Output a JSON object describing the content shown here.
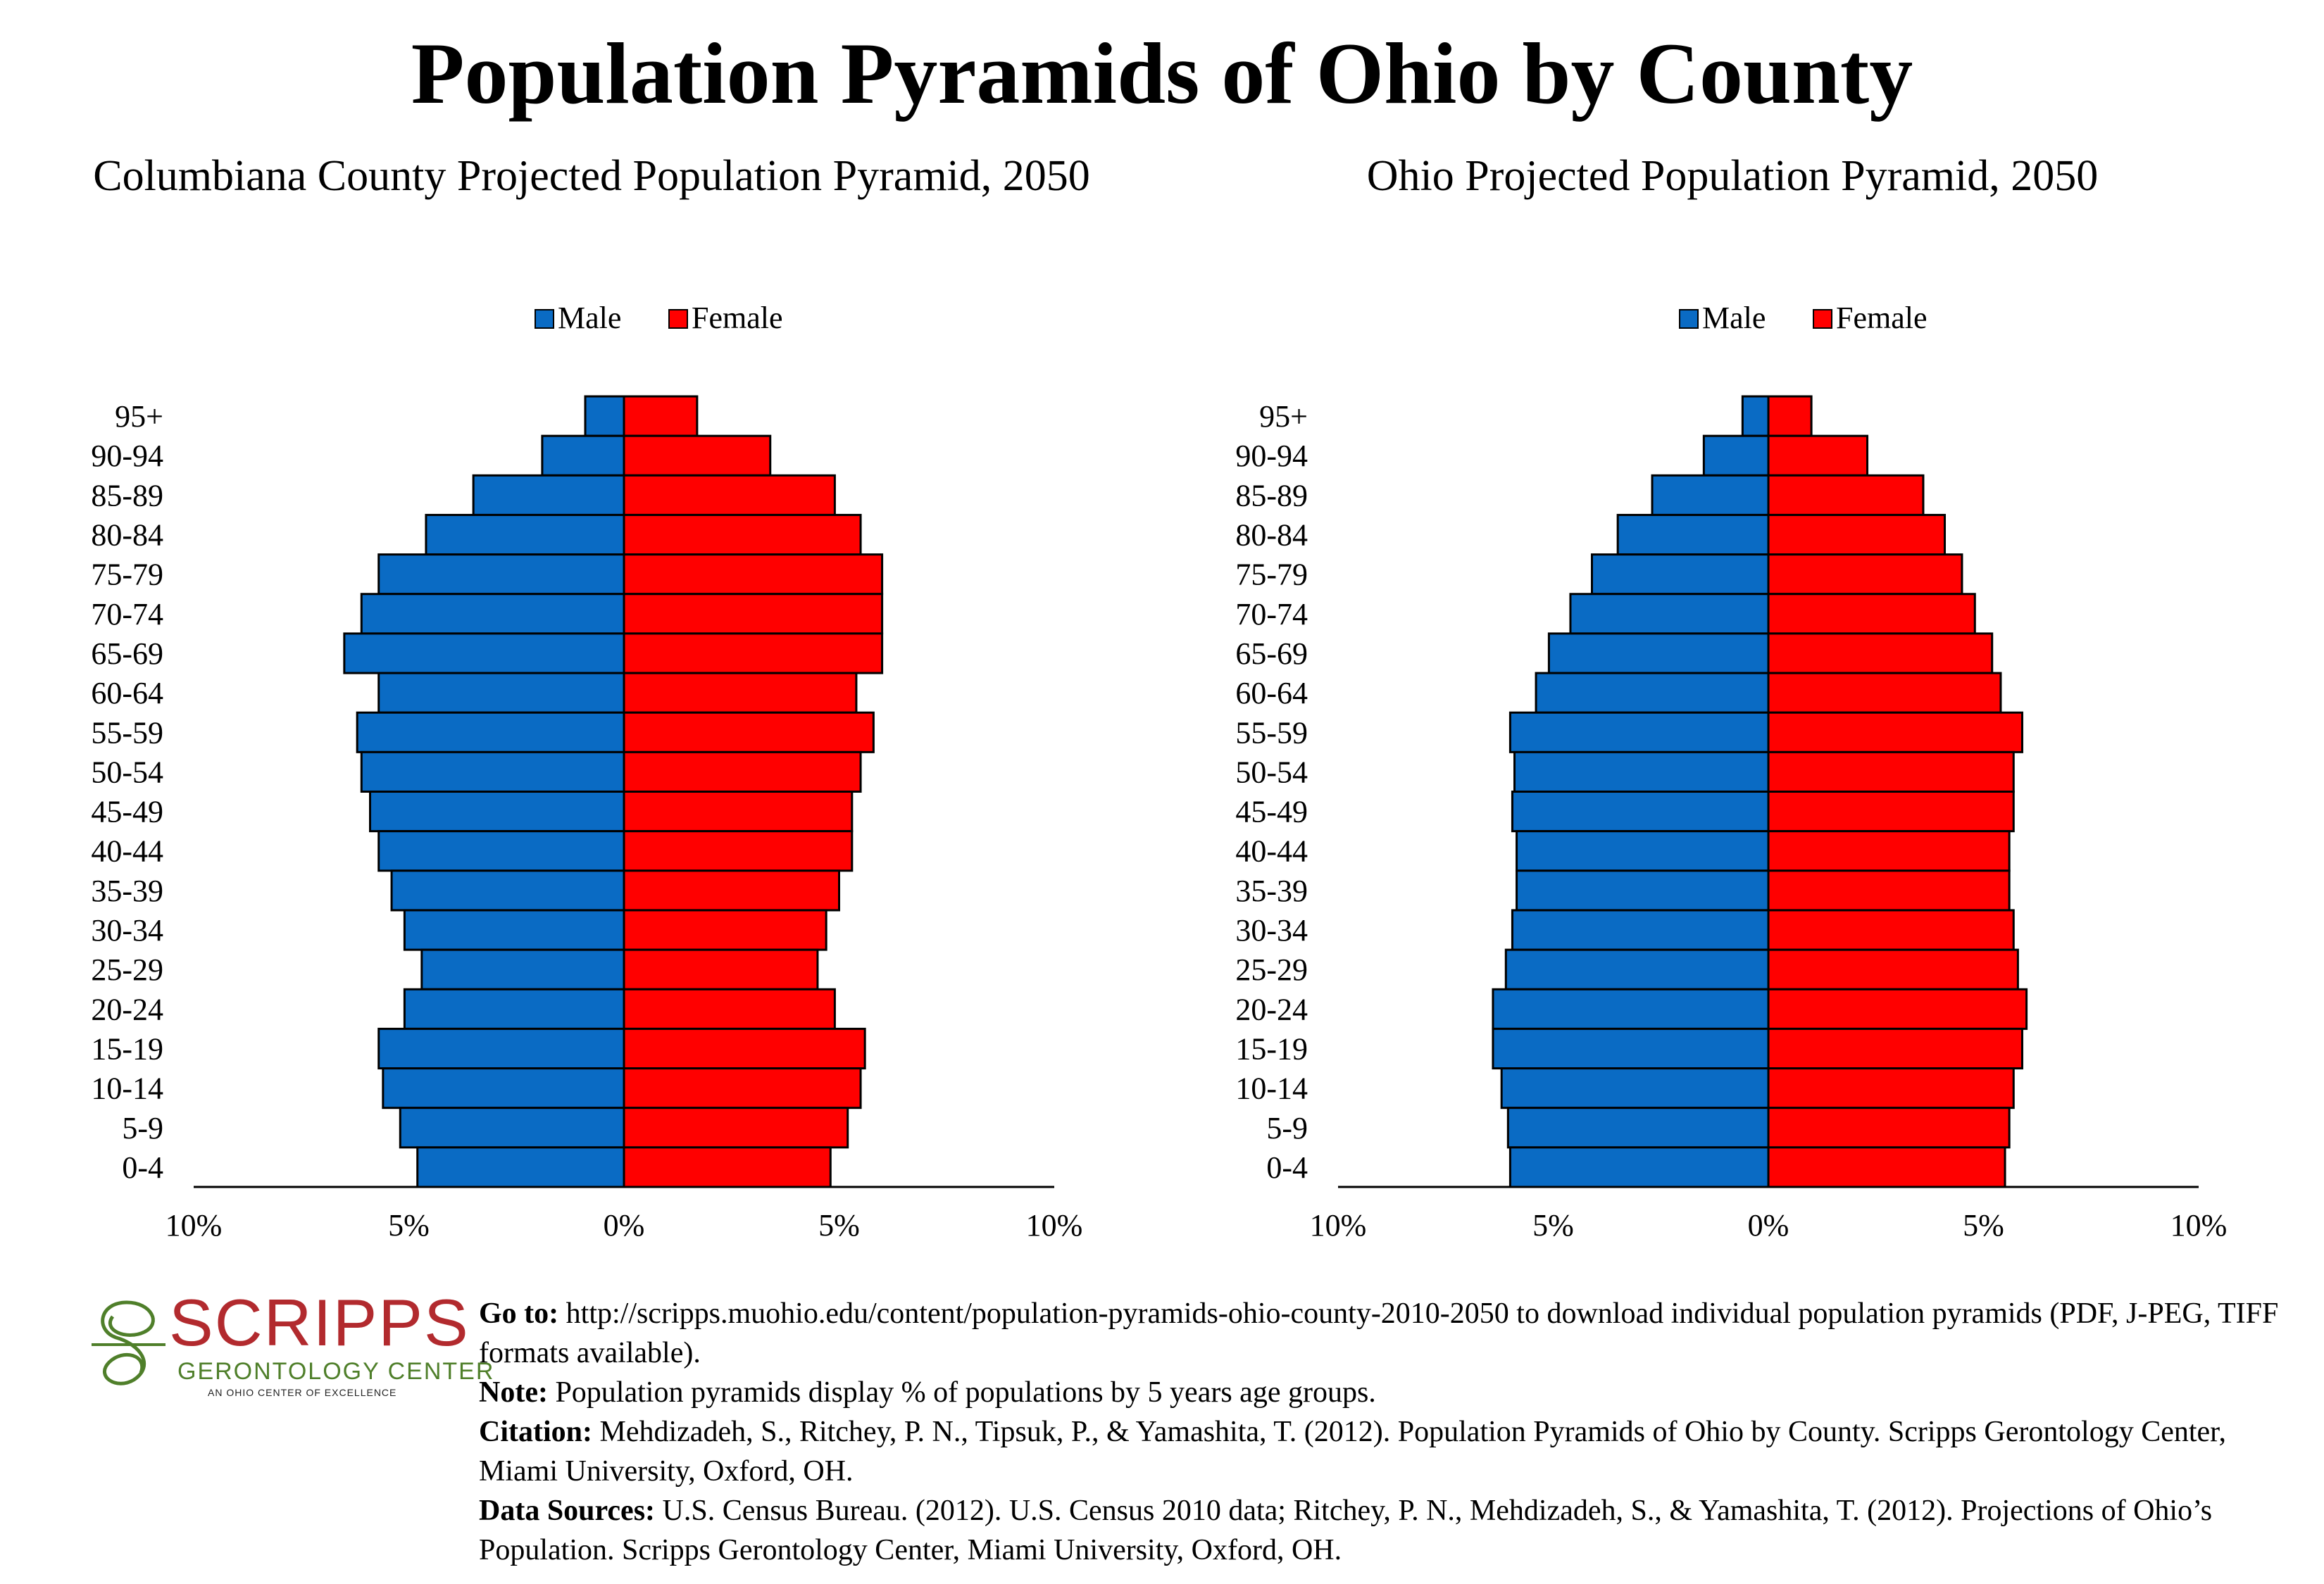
{
  "main_title": "Population Pyramids of Ohio by County",
  "colors": {
    "male": "#0a6bc4",
    "female": "#ff0000",
    "outline": "#000000"
  },
  "chart_data": [
    {
      "type": "bar",
      "title": "Columbiana County Projected Population Pyramid, 2050",
      "legend": [
        "Male",
        "Female"
      ],
      "legend_position": "top-center",
      "categories": [
        "95+",
        "90-94",
        "85-89",
        "80-84",
        "75-79",
        "70-74",
        "65-69",
        "60-64",
        "55-59",
        "50-54",
        "45-49",
        "40-44",
        "35-39",
        "30-34",
        "25-29",
        "20-24",
        "15-19",
        "10-14",
        "5-9",
        "0-4"
      ],
      "series": [
        {
          "name": "Male",
          "values": [
            0.9,
            1.9,
            3.5,
            4.6,
            5.7,
            6.1,
            6.5,
            5.7,
            6.2,
            6.1,
            5.9,
            5.7,
            5.4,
            5.1,
            4.7,
            5.1,
            5.7,
            5.6,
            5.2,
            4.8
          ]
        },
        {
          "name": "Female",
          "values": [
            1.7,
            3.4,
            4.9,
            5.5,
            6.0,
            6.0,
            6.0,
            5.4,
            5.8,
            5.5,
            5.3,
            5.3,
            5.0,
            4.7,
            4.5,
            4.9,
            5.6,
            5.5,
            5.2,
            4.8
          ]
        }
      ],
      "xlim": [
        -10,
        10
      ],
      "x_ticks": [
        "10%",
        "5%",
        "0%",
        "5%",
        "10%"
      ]
    },
    {
      "type": "bar",
      "title": "Ohio Projected Population Pyramid, 2050",
      "legend": [
        "Male",
        "Female"
      ],
      "legend_position": "top-center",
      "categories": [
        "95+",
        "90-94",
        "85-89",
        "80-84",
        "75-79",
        "70-74",
        "65-69",
        "60-64",
        "55-59",
        "50-54",
        "45-49",
        "40-44",
        "35-39",
        "30-34",
        "25-29",
        "20-24",
        "15-19",
        "10-14",
        "5-9",
        "0-4"
      ],
      "series": [
        {
          "name": "Male",
          "values": [
            0.6,
            1.5,
            2.7,
            3.5,
            4.1,
            4.6,
            5.1,
            5.4,
            6.0,
            5.9,
            5.95,
            5.85,
            5.85,
            5.95,
            6.1,
            6.4,
            6.4,
            6.2,
            6.05,
            6.0
          ]
        },
        {
          "name": "Female",
          "values": [
            1.0,
            2.3,
            3.6,
            4.1,
            4.5,
            4.8,
            5.2,
            5.4,
            5.9,
            5.7,
            5.7,
            5.6,
            5.6,
            5.7,
            5.8,
            6.0,
            5.9,
            5.7,
            5.6,
            5.5
          ]
        }
      ],
      "xlim": [
        -10,
        10
      ],
      "x_ticks": [
        "10%",
        "5%",
        "0%",
        "5%",
        "10%"
      ]
    }
  ],
  "footer": {
    "goto_label": "Go to:",
    "goto_text": " http://scripps.muohio.edu/content/population-pyramids-ohio-county-2010-2050 to download individual population pyramids (PDF, J-PEG, TIFF formats available).",
    "note_label": "Note:",
    "note_text": " Population pyramids display % of populations by 5 years age groups.",
    "citation_label": "Citation:",
    "citation_text": " Mehdizadeh, S., Ritchey, P. N., Tipsuk, P., & Yamashita, T. (2012). Population Pyramids of Ohio by County. Scripps Gerontology Center, Miami University, Oxford, OH.",
    "sources_label": "Data Sources:",
    "sources_text": " U.S. Census Bureau. (2012). U.S. Census 2010 data; Ritchey, P. N., Mehdizadeh, S., & Yamashita, T. (2012). Projections of Ohio’s Population. Scripps Gerontology Center, Miami University, Oxford, OH."
  },
  "logo": {
    "word": "SCRIPPS",
    "subtitle": "GERONTOLOGY CENTER",
    "tagline": "AN OHIO CENTER OF EXCELLENCE"
  }
}
